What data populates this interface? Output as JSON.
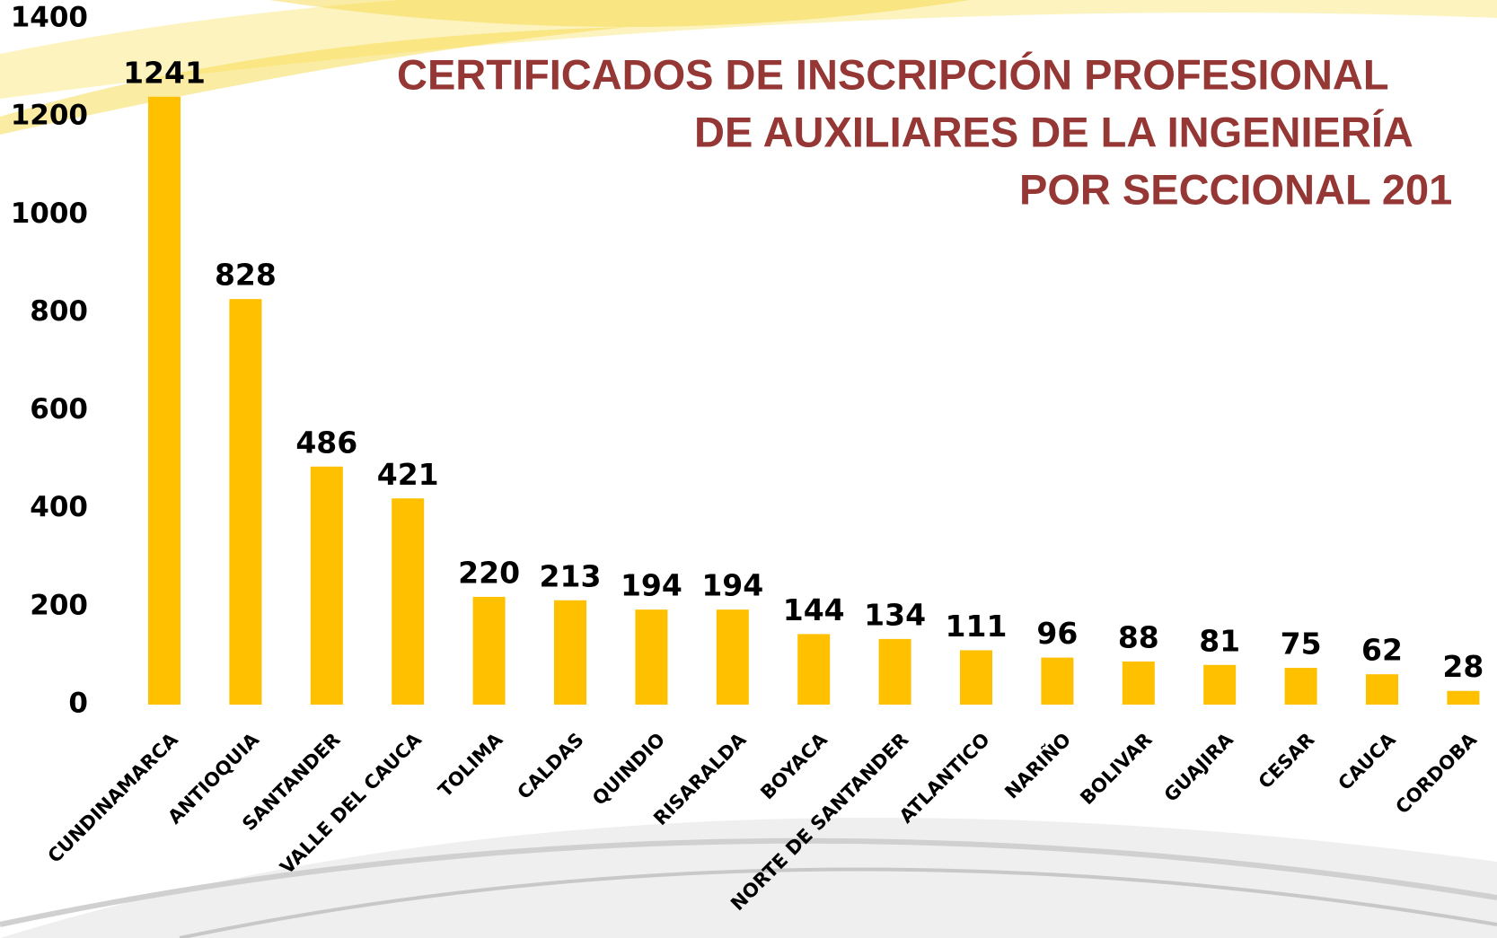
{
  "chart_data": {
    "type": "bar",
    "title": [
      "CERTIFICADOS DE INSCRIPCIÓN PROFESIONAL",
      "DE AUXILIARES DE LA INGENIERÍA",
      "POR SECCIONAL 201"
    ],
    "categories": [
      "CUNDINAMARCA",
      "ANTIOQUIA",
      "SANTANDER",
      "VALLE DEL CAUCA",
      "TOLIMA",
      "CALDAS",
      "QUINDIO",
      "RISARALDA",
      "BOYACA",
      "NORTE DE SANTANDER",
      "ATLANTICO",
      "NARIÑO",
      "BOLIVAR",
      "GUAJIRA",
      "CESAR",
      "CAUCA",
      "CORDOBA"
    ],
    "values": [
      1241,
      828,
      486,
      421,
      220,
      213,
      194,
      194,
      144,
      134,
      111,
      96,
      88,
      81,
      75,
      62,
      28
    ],
    "color": "#ffc000",
    "title_color": "#953735",
    "ylim": [
      0,
      1400
    ],
    "yticks": [
      0,
      200,
      400,
      600,
      800,
      1000,
      1200,
      1400
    ],
    "grid": false
  }
}
